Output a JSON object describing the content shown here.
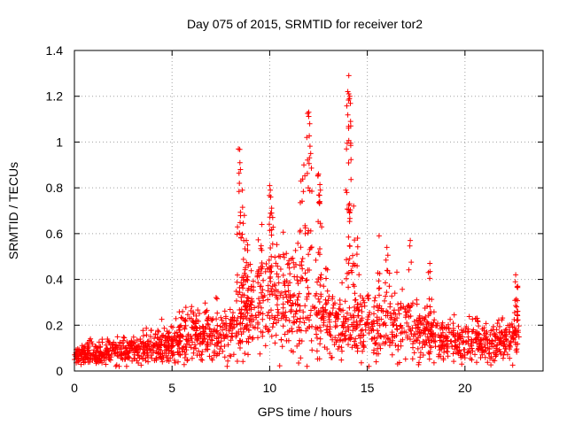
{
  "chart_data": {
    "type": "scatter",
    "title": "Day 075 of 2015, SRMTID for receiver tor2",
    "xlabel": "GPS time / hours",
    "ylabel": "SRMTID / TECUs",
    "xlim": [
      0,
      24
    ],
    "ylim": [
      0,
      1.4
    ],
    "xticks": [
      0,
      5,
      10,
      15,
      20
    ],
    "yticks": [
      0,
      0.2,
      0.4,
      0.6,
      0.8,
      1,
      1.2,
      1.4
    ],
    "xtick_labels": [
      "0",
      "5",
      "10",
      "15",
      "20"
    ],
    "ytick_labels": [
      "0",
      "0.2",
      "0.4",
      "0.6",
      "0.8",
      "1",
      "1.2",
      "1.4"
    ],
    "grid": true,
    "marker": "+",
    "series": [
      {
        "name": "SRMTID",
        "color": "#ff0000",
        "profile_hours": [
          0,
          1,
          2,
          3,
          4,
          5,
          6,
          7,
          7.8,
          8.3,
          9,
          10,
          11,
          12,
          13,
          14,
          15,
          16,
          17,
          18,
          19,
          20,
          21,
          22,
          22.8
        ],
        "profile_typical": [
          0.07,
          0.07,
          0.08,
          0.09,
          0.1,
          0.12,
          0.14,
          0.16,
          0.14,
          0.2,
          0.26,
          0.3,
          0.3,
          0.27,
          0.22,
          0.18,
          0.18,
          0.22,
          0.2,
          0.16,
          0.13,
          0.12,
          0.12,
          0.12,
          0.15
        ],
        "spikes": [
          {
            "x": 8.4,
            "y": 0.97
          },
          {
            "x": 8.5,
            "y": 0.88
          },
          {
            "x": 8.6,
            "y": 0.79
          },
          {
            "x": 8.7,
            "y": 0.68
          },
          {
            "x": 8.8,
            "y": 0.57
          },
          {
            "x": 8.9,
            "y": 0.46
          },
          {
            "x": 9.6,
            "y": 0.64
          },
          {
            "x": 10.0,
            "y": 0.81
          },
          {
            "x": 10.05,
            "y": 0.76
          },
          {
            "x": 10.1,
            "y": 0.69
          },
          {
            "x": 11.6,
            "y": 0.83
          },
          {
            "x": 11.75,
            "y": 0.9
          },
          {
            "x": 11.9,
            "y": 1.02
          },
          {
            "x": 12.0,
            "y": 1.13
          },
          {
            "x": 12.05,
            "y": 1.08
          },
          {
            "x": 12.1,
            "y": 0.95
          },
          {
            "x": 12.5,
            "y": 0.86
          },
          {
            "x": 12.6,
            "y": 0.79
          },
          {
            "x": 13.9,
            "y": 0.79
          },
          {
            "x": 14.0,
            "y": 1.22
          },
          {
            "x": 14.05,
            "y": 1.29
          },
          {
            "x": 14.1,
            "y": 1.2
          },
          {
            "x": 14.15,
            "y": 1.07
          },
          {
            "x": 14.3,
            "y": 0.72
          },
          {
            "x": 14.5,
            "y": 0.58
          },
          {
            "x": 15.6,
            "y": 0.59
          },
          {
            "x": 16.0,
            "y": 0.54
          },
          {
            "x": 17.2,
            "y": 0.57
          },
          {
            "x": 18.2,
            "y": 0.47
          },
          {
            "x": 20.6,
            "y": 0.23
          },
          {
            "x": 22.6,
            "y": 0.42
          },
          {
            "x": 22.7,
            "y": 0.37
          }
        ]
      }
    ]
  }
}
